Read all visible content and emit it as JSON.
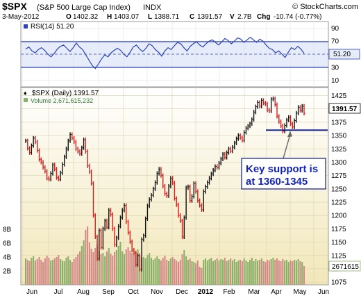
{
  "header": {
    "symbol": "$SPX",
    "name": "(S&P 500 Large Cap Index)",
    "exchange": "INDX",
    "brand": "© StockCharts.com",
    "date": "3-May-2012",
    "o_label": "O",
    "o": "1402.32",
    "h_label": "H",
    "h": "1403.07",
    "l_label": "L",
    "l": "1388.71",
    "c_label": "C",
    "c": "1391.57",
    "v_label": "V",
    "v": "2.7B",
    "chg_label": "Chg",
    "chg": "-10.74 (-0.77%)"
  },
  "rsi_panel": {
    "legend": "RSI(14) 51.20",
    "current_label": "51.20",
    "current": 51.2,
    "ticks": [
      "90",
      "70",
      "50",
      "30",
      "10"
    ],
    "lines": [
      70,
      30
    ],
    "ylim": [
      0,
      100
    ],
    "values": [
      58,
      61,
      55,
      52,
      57,
      60,
      56,
      50,
      46,
      51,
      58,
      62,
      64,
      59,
      54,
      60,
      67,
      61,
      57,
      49,
      41,
      33,
      28,
      35,
      43,
      49,
      46,
      52,
      56,
      59,
      56,
      50,
      46,
      53,
      61,
      64,
      58,
      54,
      59,
      66,
      63,
      57,
      53,
      47,
      55,
      60,
      57,
      63,
      68,
      66,
      60,
      55,
      62,
      66,
      69,
      64,
      61,
      66,
      70,
      72,
      68,
      64,
      69,
      74,
      71,
      66,
      70,
      75,
      73,
      68,
      72,
      76,
      72,
      68,
      73,
      70,
      64,
      59,
      57,
      52,
      55,
      50,
      45,
      53,
      60,
      57,
      62,
      58,
      51.2
    ],
    "colors": {
      "line": "#2b43b8",
      "guide": "#2b43b8",
      "bg": "#ffffff",
      "shade": "#e6ecfa"
    }
  },
  "price_panel": {
    "legend_price": "$SPX (Daily) 1391.57",
    "legend_volume": "Volume 2,671,615,232",
    "current_label": "1391.57",
    "volume_label": "2671615",
    "price_ticks": [
      "1425",
      "1400",
      "1375",
      "1350",
      "1325",
      "1300",
      "1275",
      "1250",
      "1225",
      "1200",
      "1175",
      "1150",
      "1125",
      "1100",
      "1075"
    ],
    "volume_ticks": [
      "8B",
      "6B",
      "4B",
      "2B"
    ],
    "x_labels": [
      "Jun",
      "Jul",
      "Aug",
      "Sep",
      "Oct",
      "Nov",
      "Dec",
      "2012",
      "Feb",
      "Mar",
      "Apr",
      "May",
      "Jun"
    ],
    "support_note_line1": "Key support is",
    "support_note_line2": "at 1360-1345",
    "colors": {
      "bg_top": "#ffffff",
      "bg_bottom": "#f2e7b9",
      "up": "#111111",
      "down": "#d81b1b",
      "vol_up": "#8ab06a",
      "vol_down": "#d58a8a",
      "support": "#0d1a8a",
      "note_border": "#0d1a8a",
      "note_text": "#1324b8",
      "arrow": "#666666"
    }
  },
  "chart_data": {
    "type": "line",
    "title": "$SPX (S&P 500 Large Cap Index) INDX",
    "x_range": [
      "2011-05-23",
      "2012-06-20"
    ],
    "x_ticks": [
      "Jun",
      "Jul",
      "Aug",
      "Sep",
      "Oct",
      "Nov",
      "Dec",
      "2012",
      "Feb",
      "Mar",
      "Apr",
      "May",
      "Jun"
    ],
    "price_ylim": [
      1070,
      1440
    ],
    "price": [
      1340,
      1326,
      1318,
      1331,
      1345,
      1338,
      1322,
      1305,
      1300,
      1290,
      1283,
      1270,
      1268,
      1279,
      1295,
      1287,
      1271,
      1268,
      1280,
      1296,
      1310,
      1325,
      1340,
      1352,
      1345,
      1338,
      1325,
      1320,
      1316,
      1327,
      1342,
      1320,
      1293,
      1282,
      1260,
      1200,
      1160,
      1119,
      1172,
      1140,
      1175,
      1190,
      1178,
      1210,
      1202,
      1175,
      1145,
      1158,
      1180,
      1196,
      1210,
      1219,
      1188,
      1168,
      1151,
      1135,
      1130,
      1108,
      1125,
      1099,
      1155,
      1162,
      1194,
      1218,
      1230,
      1238,
      1250,
      1262,
      1279,
      1287,
      1275,
      1255,
      1241,
      1237,
      1255,
      1270,
      1261,
      1232,
      1220,
      1200,
      1190,
      1160,
      1196,
      1252,
      1254,
      1228,
      1236,
      1260,
      1245,
      1228,
      1219,
      1211,
      1245,
      1254,
      1262,
      1270,
      1278,
      1285,
      1292,
      1290,
      1298,
      1306,
      1315,
      1309,
      1318,
      1325,
      1321,
      1328,
      1336,
      1344,
      1350,
      1346,
      1341,
      1356,
      1364,
      1368,
      1372,
      1380,
      1394,
      1404,
      1412,
      1405,
      1416,
      1411,
      1409,
      1398,
      1396,
      1418,
      1419,
      1408,
      1386,
      1376,
      1368,
      1358,
      1369,
      1379,
      1384,
      1372,
      1366,
      1378,
      1392,
      1403,
      1397,
      1405,
      1391.57
    ],
    "volume_ylim_billions": [
      0,
      10
    ],
    "volume_billions": [
      3.8,
      3.6,
      3.4,
      3.9,
      4.1,
      3.5,
      3.7,
      4.0,
      3.6,
      3.3,
      3.8,
      4.2,
      3.9,
      3.5,
      3.6,
      3.8,
      4.0,
      4.3,
      3.7,
      3.5,
      3.4,
      3.9,
      4.1,
      3.6,
      3.3,
      3.7,
      4.0,
      4.4,
      4.8,
      5.6,
      6.4,
      7.9,
      8.4,
      6.1,
      5.2,
      4.7,
      5.3,
      5.8,
      4.9,
      4.4,
      4.6,
      4.1,
      4.8,
      5.3,
      4.5,
      4.2,
      4.7,
      5.0,
      5.6,
      6.2,
      4.8,
      4.4,
      5.1,
      5.4,
      4.9,
      4.6,
      4.3,
      4.7,
      5.1,
      4.2,
      3.9,
      4.0,
      3.8,
      4.3,
      4.6,
      3.9,
      3.6,
      3.8,
      4.1,
      3.7,
      3.5,
      3.9,
      4.2,
      3.6,
      3.4,
      3.8,
      4.0,
      3.7,
      3.5,
      3.3,
      3.6,
      4.4,
      5.0,
      4.1,
      3.6,
      3.8,
      3.4,
      3.3,
      3.1,
      3.5,
      2.6,
      2.4,
      3.6,
      3.8,
      3.5,
      3.7,
      3.9,
      3.4,
      3.6,
      3.8,
      3.5,
      3.7,
      3.6,
      3.9,
      3.4,
      3.6,
      3.8,
      3.5,
      3.7,
      3.3,
      3.5,
      3.6,
      3.4,
      3.8,
      3.5,
      3.3,
      3.6,
      3.9,
      3.4,
      3.7,
      3.5,
      3.6,
      3.8,
      3.4,
      3.3,
      3.6,
      3.5,
      3.7,
      3.9,
      3.6,
      3.8,
      3.5,
      3.4,
      3.7,
      3.5,
      3.6,
      3.3,
      3.5,
      3.4,
      3.6,
      3.5,
      3.7,
      3.4,
      3.3,
      2.7
    ],
    "support_range": [
      1345,
      1360
    ],
    "support_line": 1360,
    "annotation": "Key support is at 1360-1345",
    "rsi_ylim": [
      0,
      100
    ],
    "rsi_last": 51.2,
    "grid": true,
    "legend_placement": "top-left"
  }
}
